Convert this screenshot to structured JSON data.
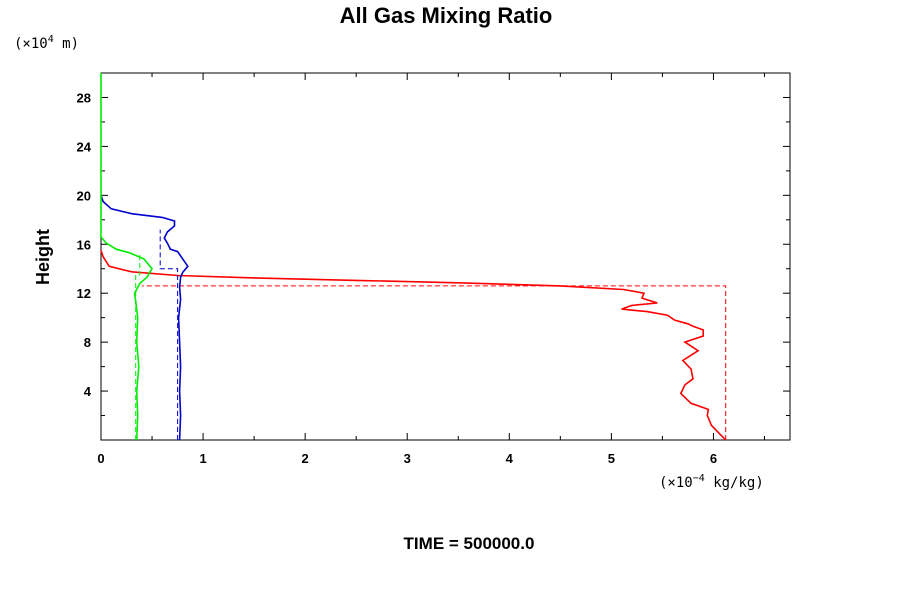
{
  "chart_data": {
    "type": "line",
    "title": "All Gas Mixing Ratio",
    "ylabel": "Height",
    "y_unit": "(×10",
    "y_unit_exp": "4",
    "y_unit_tail": " m)",
    "x_unit": "(×10",
    "x_unit_exp": "−4",
    "x_unit_tail": " kg/kg)",
    "footer": "TIME = 500000.0",
    "xlim": [
      0,
      6.75
    ],
    "ylim": [
      0,
      30
    ],
    "xticks": [
      "0",
      "1",
      "2",
      "3",
      "4",
      "5",
      "6"
    ],
    "yticks": [
      "4",
      "8",
      "12",
      "16",
      "20",
      "24",
      "28"
    ],
    "grid": false,
    "colors": {
      "red": "#ff0000",
      "blue": "#0000cc",
      "green": "#00ee00",
      "frame": "#000000"
    },
    "series": [
      {
        "color": "red",
        "style": "solid",
        "points": [
          [
            6.12,
            0
          ],
          [
            6.05,
            0.6
          ],
          [
            5.98,
            1.2
          ],
          [
            5.94,
            2.0
          ],
          [
            5.95,
            2.5
          ],
          [
            5.78,
            3.0
          ],
          [
            5.68,
            3.8
          ],
          [
            5.72,
            4.5
          ],
          [
            5.8,
            5.0
          ],
          [
            5.78,
            5.8
          ],
          [
            5.7,
            6.5
          ],
          [
            5.85,
            7.3
          ],
          [
            5.72,
            8.0
          ],
          [
            5.9,
            8.5
          ],
          [
            5.9,
            9.0
          ],
          [
            5.8,
            9.3
          ],
          [
            5.75,
            9.5
          ],
          [
            5.62,
            9.8
          ],
          [
            5.55,
            10.2
          ],
          [
            5.35,
            10.5
          ],
          [
            5.1,
            10.7
          ],
          [
            5.2,
            11.0
          ],
          [
            5.45,
            11.2
          ],
          [
            5.3,
            11.6
          ],
          [
            5.32,
            12.0
          ],
          [
            5.12,
            12.3
          ],
          [
            4.5,
            12.6
          ],
          [
            3.5,
            12.85
          ],
          [
            2.5,
            13.05
          ],
          [
            1.5,
            13.25
          ],
          [
            0.75,
            13.45
          ],
          [
            0.3,
            13.75
          ],
          [
            0.08,
            14.2
          ],
          [
            0.02,
            15.0
          ],
          [
            0,
            15.5
          ]
        ]
      },
      {
        "color": "red",
        "style": "dashed",
        "points": [
          [
            6.12,
            0
          ],
          [
            6.12,
            12.6
          ],
          [
            0.4,
            12.6
          ]
        ]
      },
      {
        "color": "blue",
        "style": "solid",
        "points": [
          [
            0.77,
            0
          ],
          [
            0.78,
            2.0
          ],
          [
            0.77,
            4.0
          ],
          [
            0.78,
            6.0
          ],
          [
            0.77,
            8.0
          ],
          [
            0.76,
            10.0
          ],
          [
            0.78,
            11.5
          ],
          [
            0.77,
            12.5
          ],
          [
            0.78,
            13.3
          ],
          [
            0.8,
            13.7
          ],
          [
            0.85,
            14.2
          ],
          [
            0.8,
            14.8
          ],
          [
            0.75,
            15.4
          ],
          [
            0.68,
            15.6
          ],
          [
            0.65,
            16.1
          ],
          [
            0.62,
            16.5
          ],
          [
            0.65,
            17.0
          ],
          [
            0.72,
            17.5
          ],
          [
            0.72,
            17.9
          ],
          [
            0.6,
            18.2
          ],
          [
            0.3,
            18.5
          ],
          [
            0.1,
            18.9
          ],
          [
            0.02,
            19.5
          ],
          [
            0,
            20.0
          ]
        ]
      },
      {
        "color": "blue",
        "style": "dashed",
        "points": [
          [
            0.75,
            0
          ],
          [
            0.75,
            14.0
          ],
          [
            0.58,
            14.0
          ],
          [
            0.58,
            17.2
          ]
        ]
      },
      {
        "color": "green",
        "style": "solid",
        "points": [
          [
            0.35,
            0
          ],
          [
            0.36,
            2.0
          ],
          [
            0.35,
            4.0
          ],
          [
            0.37,
            6.0
          ],
          [
            0.35,
            8.0
          ],
          [
            0.36,
            10.0
          ],
          [
            0.33,
            12.0
          ],
          [
            0.38,
            12.8
          ],
          [
            0.45,
            13.3
          ],
          [
            0.5,
            14.0
          ],
          [
            0.42,
            14.8
          ],
          [
            0.28,
            15.3
          ],
          [
            0.15,
            15.6
          ],
          [
            0.05,
            16.1
          ],
          [
            0,
            16.6
          ],
          [
            0,
            30
          ]
        ]
      },
      {
        "color": "green",
        "style": "dashed",
        "points": [
          [
            0.34,
            0
          ],
          [
            0.34,
            13.5
          ],
          [
            0.38,
            13.5
          ],
          [
            0.38,
            15.2
          ]
        ]
      }
    ]
  }
}
